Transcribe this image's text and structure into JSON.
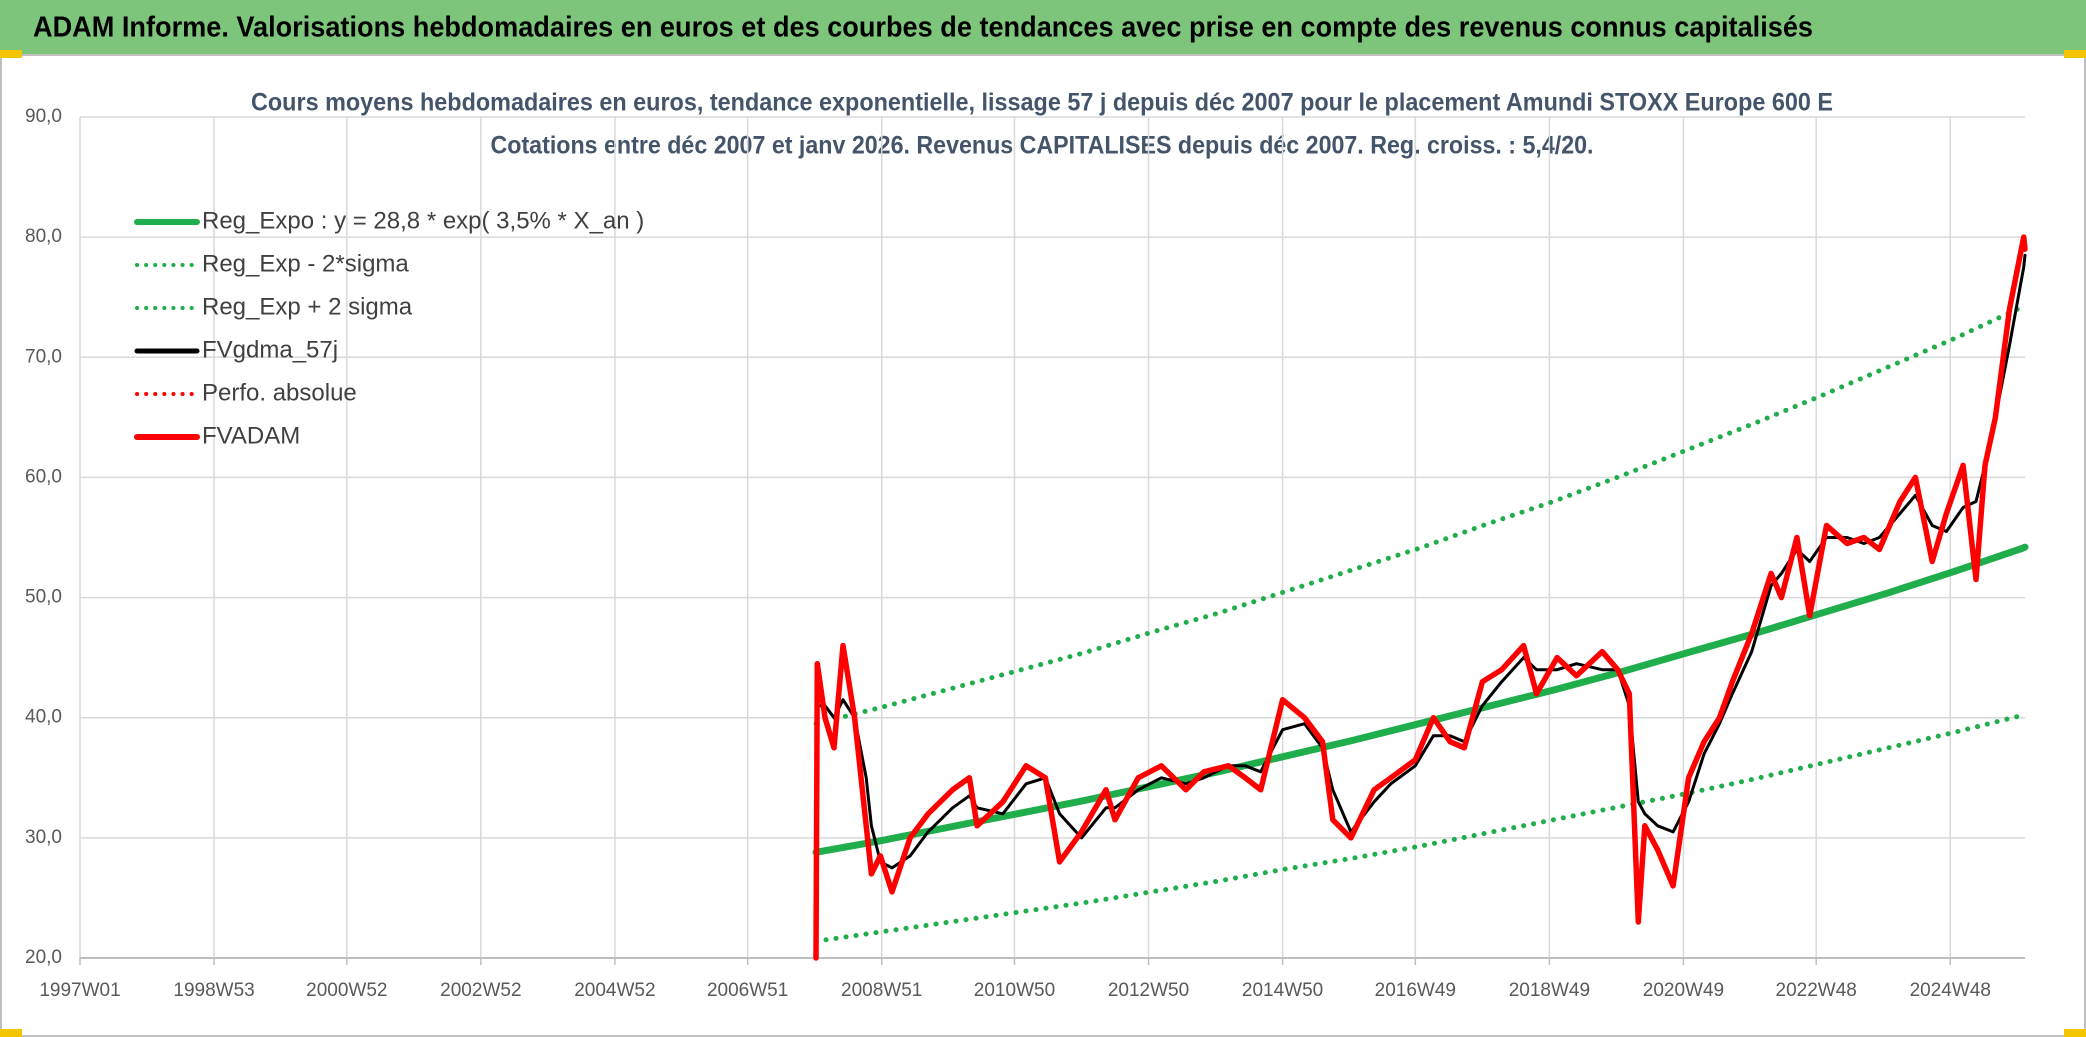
{
  "header": {
    "title": "ADAM Informe. Valorisations hebdomadaires en euros et des courbes de tendances avec prise en compte des revenus connus capitalisés"
  },
  "chart_data": {
    "type": "line",
    "title": "Cours moyens hebdomadaires en euros, tendance exponentielle, lissage 57 j depuis déc 2007 pour le placement Amundi STOXX Europe 600 E",
    "subtitle": "Cotations entre déc 2007 et janv 2026. Revenus CAPITALISES depuis déc 2007. Reg. croiss. : 5,4/20.",
    "grid": true,
    "legend": "top-left",
    "xlim": [
      "1997W01",
      "2026W02"
    ],
    "xticks": [
      "1997W01",
      "1998W53",
      "2000W52",
      "2002W52",
      "2004W52",
      "2006W51",
      "2008W51",
      "2010W50",
      "2012W50",
      "2014W50",
      "2016W49",
      "2018W49",
      "2020W49",
      "2022W48",
      "2024W48"
    ],
    "ylim": [
      20,
      90
    ],
    "yticks": [
      {
        "value": 20,
        "label": "20,0"
      },
      {
        "value": 30,
        "label": "30,0"
      },
      {
        "value": 40,
        "label": "40,0"
      },
      {
        "value": 50,
        "label": "50,0"
      },
      {
        "value": 60,
        "label": "60,0"
      },
      {
        "value": 70,
        "label": "70,0"
      },
      {
        "value": 80,
        "label": "80,0"
      },
      {
        "value": 90,
        "label": "90,0"
      }
    ],
    "x": [
      "2007W52",
      "2008W01",
      "2008W07",
      "2008W14",
      "2008W21",
      "2008W30",
      "2008W39",
      "2008W43",
      "2008W50",
      "2009W07",
      "2009W21",
      "2009W35",
      "2010W02",
      "2010W15",
      "2010W21",
      "2010W41",
      "2011W07",
      "2011W22",
      "2011W33",
      "2011W50",
      "2012W17",
      "2012W24",
      "2012W42",
      "2013W08",
      "2013W27",
      "2013W41",
      "2014W08",
      "2014W21",
      "2014W33",
      "2014W50",
      "2015W15",
      "2015W29",
      "2015W37",
      "2015W51",
      "2016W17",
      "2016W30",
      "2016W49",
      "2017W11",
      "2017W24",
      "2017W35",
      "2017W49",
      "2018W12",
      "2018W29",
      "2018W39",
      "2019W03",
      "2019W18",
      "2019W38",
      "2019W50",
      "2020W07",
      "2020W14",
      "2020W19",
      "2020W29",
      "2020W41",
      "2021W01",
      "2021W13",
      "2021W25",
      "2021W35",
      "2021W50",
      "2022W13",
      "2022W21",
      "2022W33",
      "2022W43",
      "2023W04",
      "2023W20",
      "2023W33",
      "2023W45",
      "2024W09",
      "2024W21",
      "2024W34",
      "2024W45",
      "2025W06",
      "2025W16",
      "2025W23",
      "2025W31",
      "2025W42",
      "2026W01",
      "2026W02"
    ],
    "series": [
      {
        "name": "Reg_Expo : y = 28,8 * exp( 3,5% *  X_an )",
        "color": "#1fae4b",
        "line_style": "solid",
        "x": [
          "2007W52",
          "2008W52",
          "2009W52",
          "2010W52",
          "2011W52",
          "2012W52",
          "2013W52",
          "2014W52",
          "2015W52",
          "2016W52",
          "2017W52",
          "2018W52",
          "2019W52",
          "2020W52",
          "2021W52",
          "2022W52",
          "2023W52",
          "2024W52",
          "2025W52",
          "2026W02"
        ],
        "values": [
          28.8,
          29.8,
          30.9,
          32.0,
          33.1,
          34.3,
          35.5,
          36.8,
          38.1,
          39.5,
          40.9,
          42.3,
          43.8,
          45.4,
          47.0,
          48.7,
          50.4,
          52.2,
          54.1,
          54.2
        ]
      },
      {
        "name": "Reg_Exp - 2*sigma",
        "color": "#1fae4b",
        "line_style": "dotted",
        "x": [
          "2007W52",
          "2008W52",
          "2009W52",
          "2010W52",
          "2011W52",
          "2012W52",
          "2013W52",
          "2014W52",
          "2015W52",
          "2016W52",
          "2017W52",
          "2018W52",
          "2019W52",
          "2020W52",
          "2021W52",
          "2022W52",
          "2023W52",
          "2024W52",
          "2025W52",
          "2026W02"
        ],
        "values": [
          21.4,
          22.2,
          23.0,
          23.8,
          24.6,
          25.5,
          26.4,
          27.4,
          28.3,
          29.3,
          30.4,
          31.5,
          32.6,
          33.7,
          34.9,
          36.2,
          37.5,
          38.8,
          40.2,
          40.2
        ]
      },
      {
        "name": "Reg_Exp + 2 sigma",
        "color": "#1fae4b",
        "line_style": "dotted",
        "x": [
          "2007W52",
          "2008W52",
          "2009W52",
          "2010W52",
          "2011W52",
          "2012W52",
          "2013W52",
          "2014W52",
          "2015W52",
          "2016W52",
          "2017W52",
          "2018W52",
          "2019W52",
          "2020W52",
          "2021W52",
          "2022W52",
          "2023W52",
          "2024W52",
          "2025W52",
          "2026W02"
        ],
        "values": [
          39.5,
          40.9,
          42.4,
          43.9,
          45.4,
          47.1,
          48.7,
          50.5,
          52.3,
          54.1,
          56.1,
          58.0,
          60.1,
          62.3,
          64.5,
          66.8,
          69.2,
          71.6,
          74.2,
          74.3
        ]
      },
      {
        "name": "FVgdma_57j",
        "color": "#000000",
        "line_style": "solid",
        "values": [
          null,
          41,
          41,
          40,
          41.5,
          40,
          35,
          31,
          28,
          27.5,
          28.5,
          30.5,
          32.5,
          33.5,
          32.5,
          32,
          34.5,
          35,
          32,
          30,
          32.5,
          32.5,
          34,
          35,
          34.5,
          35,
          36,
          36,
          35.5,
          39,
          39.5,
          37.5,
          34,
          30.5,
          33,
          34.5,
          36,
          38.5,
          38.5,
          38,
          41,
          43,
          45,
          44,
          44,
          44.5,
          44,
          44,
          41,
          33,
          32,
          31,
          30.5,
          33,
          37,
          39.5,
          42,
          45.5,
          51,
          52,
          54,
          53,
          55,
          55,
          54.5,
          55,
          57,
          58.5,
          56,
          55.5,
          57.5,
          58,
          61,
          65,
          71,
          77.5,
          78.5
        ]
      },
      {
        "name": "Perfo. absolue",
        "color": "#ff0000",
        "line_style": "dotted",
        "values": [
          null,
          null,
          null,
          null,
          null,
          null,
          null,
          null,
          null,
          null,
          null,
          null,
          null,
          null,
          null,
          null,
          null,
          null,
          null,
          null,
          null,
          null,
          null,
          null,
          null,
          null,
          null,
          null,
          null,
          null,
          null,
          null,
          null,
          null,
          null,
          null,
          null,
          null,
          null,
          null,
          null,
          null,
          null,
          null,
          null,
          null,
          null,
          null,
          null,
          null,
          null,
          null,
          null,
          null,
          null,
          null,
          null,
          null,
          null,
          null,
          null,
          null,
          null,
          null,
          null,
          null,
          null,
          null,
          null,
          null,
          null,
          null,
          null,
          null,
          null,
          null,
          null
        ]
      },
      {
        "name": "FVADAM",
        "color": "#ff0000",
        "line_style": "solid",
        "values": [
          20,
          44.5,
          40,
          37.5,
          46,
          40,
          31,
          27,
          28.5,
          25.5,
          30,
          32,
          34,
          35,
          31,
          33,
          36,
          35,
          28,
          30.5,
          34,
          31.5,
          35,
          36,
          34,
          35.5,
          36,
          35,
          34,
          41.5,
          40,
          38,
          31.5,
          30,
          34,
          35,
          36.5,
          40,
          38,
          37.5,
          43,
          44,
          46,
          42,
          45,
          43.5,
          45.5,
          44,
          42,
          23,
          31,
          29,
          26,
          35,
          38,
          40,
          43,
          47,
          52,
          50,
          55,
          48.5,
          56,
          54.5,
          55,
          54,
          58,
          60,
          53,
          57,
          61,
          51.5,
          61,
          65,
          74,
          80,
          79
        ]
      }
    ]
  }
}
